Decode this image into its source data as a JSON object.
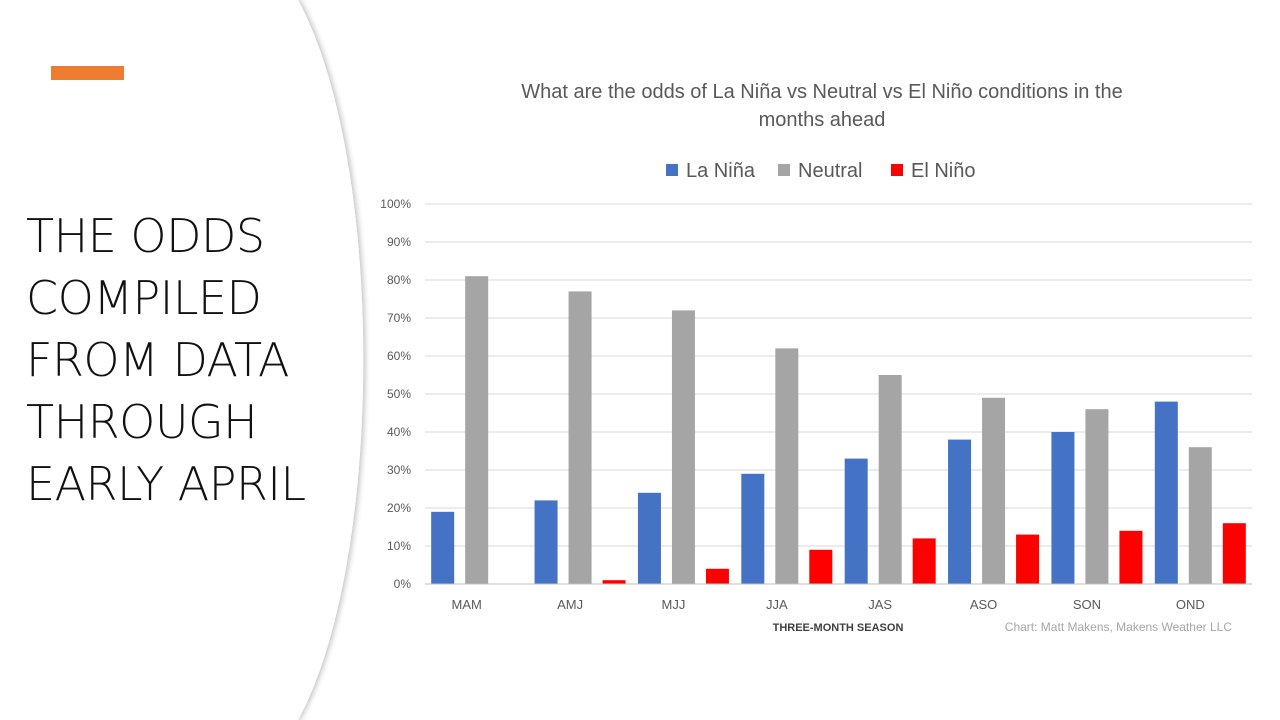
{
  "slide": {
    "title_lines": [
      "THE ODDS",
      "COMPILED",
      "FROM DATA",
      "THROUGH",
      "EARLY APRIL"
    ],
    "accent_color": "#ED7D31"
  },
  "chart_data": {
    "type": "bar",
    "title": "What are the odds of La Niña vs Neutral vs El Niño conditions in the months ahead",
    "title_lines": [
      "What are the odds of La Niña vs Neutral vs El Niño conditions in the",
      "months ahead"
    ],
    "xlabel": "THREE-MONTH SEASON",
    "ylabel": "",
    "credit": "Chart: Matt Makens, Makens Weather LLC",
    "categories": [
      "MAM",
      "AMJ",
      "MJJ",
      "JJA",
      "JAS",
      "ASO",
      "SON",
      "OND"
    ],
    "series": [
      {
        "name": "La Niña",
        "color": "#4472C4",
        "values": [
          19,
          22,
          24,
          29,
          33,
          38,
          40,
          48
        ]
      },
      {
        "name": "Neutral",
        "color": "#A5A5A5",
        "values": [
          81,
          77,
          72,
          62,
          55,
          49,
          46,
          36
        ]
      },
      {
        "name": "El Niño",
        "color": "#FF0000",
        "values": [
          0,
          1,
          4,
          9,
          12,
          13,
          14,
          16
        ]
      }
    ],
    "ylim": [
      0,
      100
    ],
    "yticks": [
      "0%",
      "10%",
      "20%",
      "30%",
      "40%",
      "50%",
      "60%",
      "70%",
      "80%",
      "90%",
      "100%"
    ],
    "grid": true,
    "legend": "top-center"
  }
}
